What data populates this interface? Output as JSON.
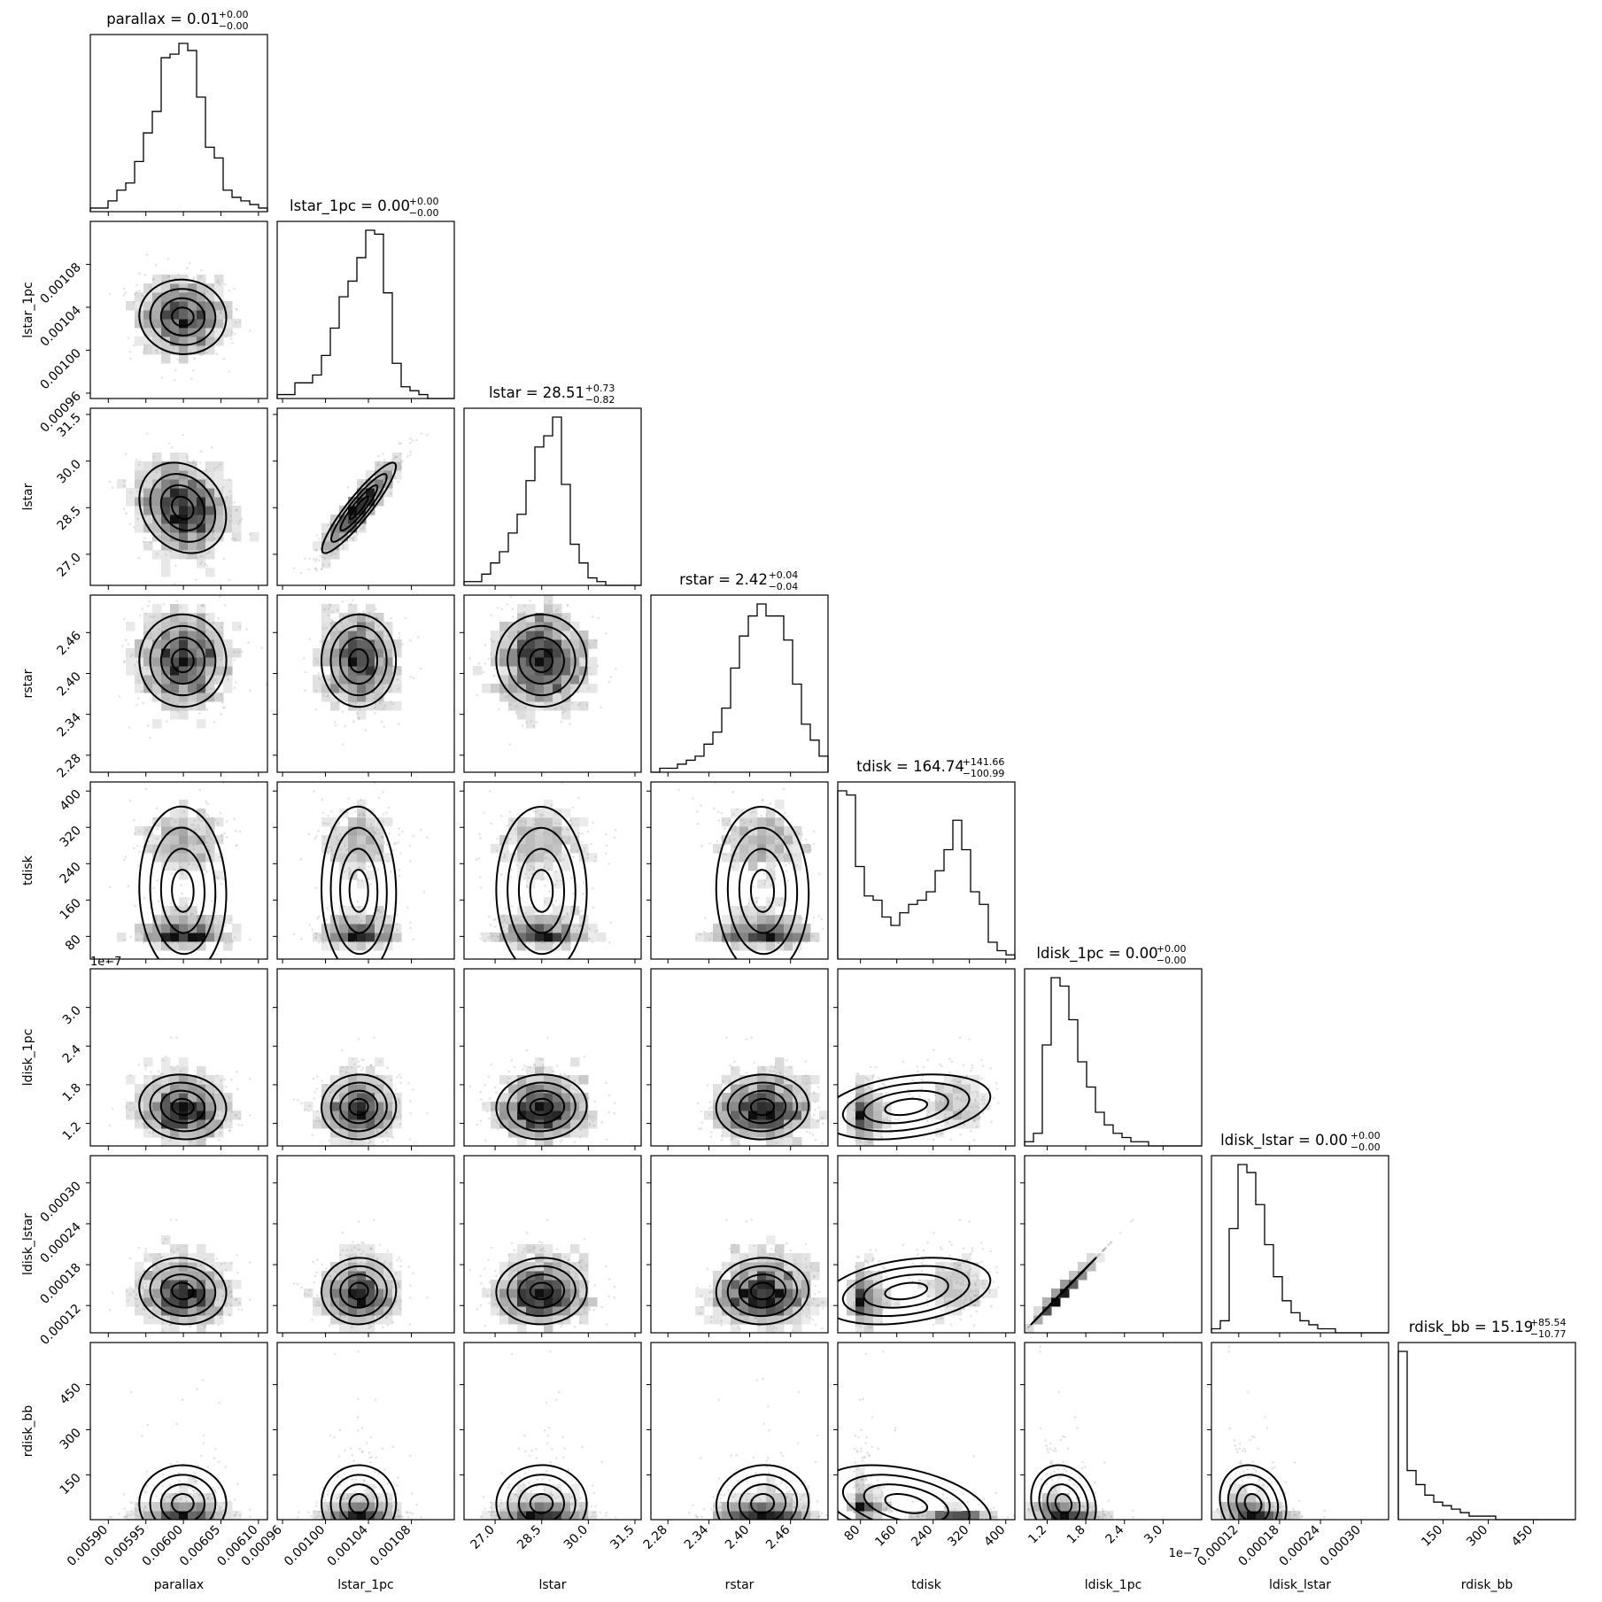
{
  "chart_data": {
    "type": "corner",
    "parameters": [
      {
        "name": "parallax",
        "axis_label": "parallax",
        "range": [
          0.005876,
          0.006112
        ],
        "ticks": [
          0.0059,
          0.00595,
          0.006,
          0.00605,
          0.0061
        ],
        "tick_labels": [
          "0.00590",
          "0.00595",
          "0.00600",
          "0.00605",
          "0.00610"
        ],
        "title_text": "parallax = 0.01",
        "title_sup": "+0.00",
        "title_sub": "−0.00",
        "median": 0.006,
        "sigma": 3.2e-05,
        "shape": "normal",
        "hist": [
          1,
          1,
          3,
          6,
          8,
          14,
          22,
          28,
          43,
          44,
          47,
          45,
          32,
          18,
          15,
          6,
          4,
          3,
          2,
          1
        ]
      },
      {
        "name": "lstar_1pc",
        "axis_label": "lstar_1pc",
        "range": [
          0.000955,
          0.00112
        ],
        "ticks": [
          0.00096,
          0.001,
          0.00104,
          0.00108
        ],
        "tick_labels": [
          "0.00096",
          "0.00100",
          "0.00104",
          "0.00108"
        ],
        "title_text": "lstar_1pc = 0.00",
        "title_sup": "+0.00",
        "title_sub": "−0.00",
        "median": 0.001032,
        "sigma": 1.9e-05,
        "shape": "normal",
        "hist": [
          1,
          1,
          4,
          4,
          6,
          11,
          18,
          26,
          30,
          36,
          43,
          42,
          27,
          9,
          3,
          2,
          1,
          0,
          0,
          0
        ]
      },
      {
        "name": "lstar",
        "axis_label": "lstar",
        "range": [
          26.0,
          31.7
        ],
        "ticks": [
          27.0,
          28.5,
          30.0,
          31.5
        ],
        "tick_labels": [
          "27.0",
          "28.5",
          "30.0",
          "31.5"
        ],
        "title_text": "lstar = 28.51",
        "title_sup": "+0.73",
        "title_sub": "−0.82",
        "median": 28.51,
        "sigma": 0.78,
        "shape": "normal",
        "hist": [
          1,
          1,
          3,
          6,
          9,
          14,
          19,
          28,
          37,
          40,
          45,
          27,
          11,
          6,
          2,
          1,
          0,
          0,
          0,
          0
        ]
      },
      {
        "name": "rstar",
        "axis_label": "rstar",
        "range": [
          2.255,
          2.515
        ],
        "ticks": [
          2.28,
          2.34,
          2.4,
          2.46
        ],
        "tick_labels": [
          "2.28",
          "2.34",
          "2.40",
          "2.46"
        ],
        "title_text": "rstar = 2.42",
        "title_sup": "+0.04",
        "title_sub": "−0.04",
        "median": 2.42,
        "sigma": 0.04,
        "shape": "normal",
        "hist": [
          0,
          1,
          1,
          2,
          3,
          4,
          7,
          10,
          16,
          26,
          34,
          39,
          42,
          39,
          39,
          33,
          22,
          12,
          8,
          4
        ]
      },
      {
        "name": "tdisk",
        "axis_label": "tdisk",
        "range": [
          30,
          420
        ],
        "ticks": [
          80,
          160,
          240,
          320,
          400
        ],
        "tick_labels": [
          "80",
          "160",
          "240",
          "320",
          "400"
        ],
        "title_text": "tdisk = 164.74",
        "title_sup": "+141.66",
        "title_sub": "−100.99",
        "median": 164.74,
        "sigma": 100,
        "shape": "bimodal",
        "hist": [
          40,
          39,
          22,
          15,
          14,
          10,
          8,
          11,
          13,
          14,
          16,
          21,
          26,
          33,
          26,
          16,
          13,
          4,
          2,
          1
        ]
      },
      {
        "name": "ldisk_1pc",
        "axis_label": "ldisk_1pc",
        "range": [
          8.5e-08,
          3.6e-07
        ],
        "ticks": [
          1.2e-07,
          1.8e-07,
          2.4e-07,
          3e-07
        ],
        "tick_labels": [
          "1.2",
          "1.8",
          "2.4",
          "3.0"
        ],
        "offset_text": "1e−7",
        "title_text": "ldisk_1pc = 0.00",
        "title_sup": "+0.00",
        "title_sub": "−0.00",
        "median": 1.35e-07,
        "sigma": 2.2e-08,
        "shape": "skewed",
        "hist": [
          1,
          3,
          24,
          40,
          38,
          30,
          20,
          14,
          8,
          5,
          3,
          2,
          1,
          1,
          0,
          0,
          0,
          0,
          0,
          0
        ]
      },
      {
        "name": "ldisk_lstar",
        "axis_label": "ldisk_lstar",
        "range": [
          8e-05,
          0.00034
        ],
        "ticks": [
          0.00012,
          0.00018,
          0.00024,
          0.0003
        ],
        "tick_labels": [
          "0.00012",
          "0.00018",
          "0.00024",
          "0.00030"
        ],
        "title_text": "ldisk_lstar = 0.00",
        "title_sup": "+0.00",
        "title_sub": "−0.00",
        "median": 0.000131,
        "sigma": 2.2e-05,
        "shape": "skewed",
        "hist": [
          1,
          3,
          26,
          42,
          40,
          32,
          22,
          14,
          8,
          5,
          3,
          2,
          1,
          1,
          0,
          0,
          0,
          0,
          0,
          0
        ]
      },
      {
        "name": "rdisk_bb",
        "axis_label": "rdisk_bb",
        "range": [
          1,
          590
        ],
        "ticks": [
          150,
          300,
          450
        ],
        "tick_labels": [
          "150",
          "300",
          "450"
        ],
        "title_text": "rdisk_bb = 15.19",
        "title_sup": "+85.54",
        "title_sub": "−10.77",
        "median": 15.19,
        "sigma": 60,
        "shape": "exponential",
        "hist": [
          48,
          14,
          10,
          7,
          5,
          4,
          3,
          2,
          1,
          1,
          1,
          0,
          0,
          0,
          0,
          0,
          0,
          0,
          0,
          0
        ]
      }
    ],
    "correlations": {
      "0-1": 0.0,
      "0-2": -0.5,
      "1-2": 0.93,
      "5-6": 0.97,
      "4-5": 0.5,
      "4-6": 0.5,
      "4-7": -0.7,
      "0-3": -0.1,
      "1-3": -0.1,
      "2-3": 0.05
    },
    "contour_levels_sigma": [
      0.5,
      1.0,
      1.5,
      2.0
    ],
    "layout": "lower-triangle",
    "grid": false
  }
}
